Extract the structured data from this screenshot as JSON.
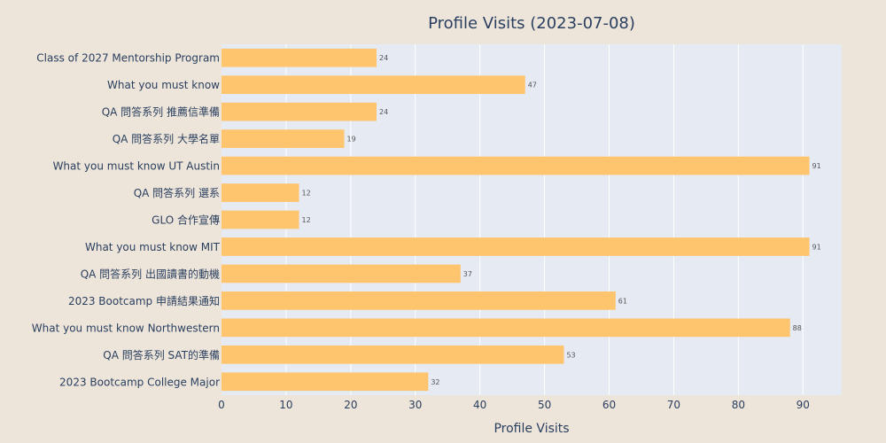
{
  "chart_data": {
    "type": "bar",
    "orientation": "horizontal",
    "title": "Profile Visits (2023-07-08)",
    "xlabel": "Profile Visits",
    "ylabel": "",
    "xlim": [
      0,
      96
    ],
    "x_ticks": [
      0,
      10,
      20,
      30,
      40,
      50,
      60,
      70,
      80,
      90
    ],
    "grid": true,
    "legend": "none",
    "categories": [
      "Class of 2027 Mentorship Program",
      "What you must know",
      "QA 問答系列 推薦信準備",
      "QA 問答系列 大學名單",
      "What you must know UT Austin",
      "QA 問答系列 選系",
      "GLO 合作宣傳",
      "What you must know MIT",
      "QA 問答系列 出國讀書的動機",
      "2023 Bootcamp 申請結果通知",
      "What you must know Northwestern",
      "QA 問答系列 SAT的準備",
      "2023 Bootcamp College Major"
    ],
    "values": [
      24,
      47,
      24,
      19,
      91,
      12,
      12,
      91,
      37,
      61,
      88,
      53,
      32
    ],
    "colors": {
      "bar": "#ffc46e",
      "plot_bg": "#e5eaf3",
      "paper_bg": "#ede5da",
      "grid": "#ffffff",
      "text": "#2a3f5f",
      "value_label": "#555555"
    }
  }
}
